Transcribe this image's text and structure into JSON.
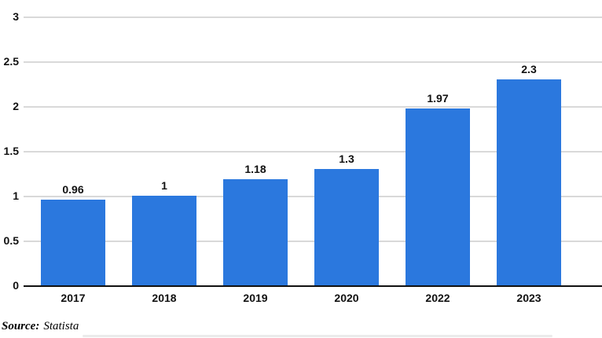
{
  "chart_data": {
    "type": "bar",
    "title": "",
    "xlabel": "",
    "ylabel": "",
    "categories": [
      "2017",
      "2018",
      "2019",
      "2020",
      "2022",
      "2023"
    ],
    "values": [
      0.96,
      1,
      1.18,
      1.3,
      1.97,
      2.3
    ],
    "value_labels": [
      "0.96",
      "1",
      "1.18",
      "1.3",
      "1.97",
      "2.3"
    ],
    "y_tick_labels": [
      "3",
      "2.5",
      "2",
      "1.5",
      "1",
      "0.5",
      "0"
    ],
    "y_tick_values": [
      3,
      2.5,
      2,
      1.5,
      1,
      0.5,
      0
    ],
    "ylim": [
      0,
      3
    ],
    "grid": true,
    "legend": false,
    "bar_color": "#2b78de",
    "gridline_color": "#d9d9d9",
    "axis_line_color": "#111111",
    "label_color": "#111111"
  },
  "source": {
    "prefix": "Source:",
    "name": "Statista"
  }
}
